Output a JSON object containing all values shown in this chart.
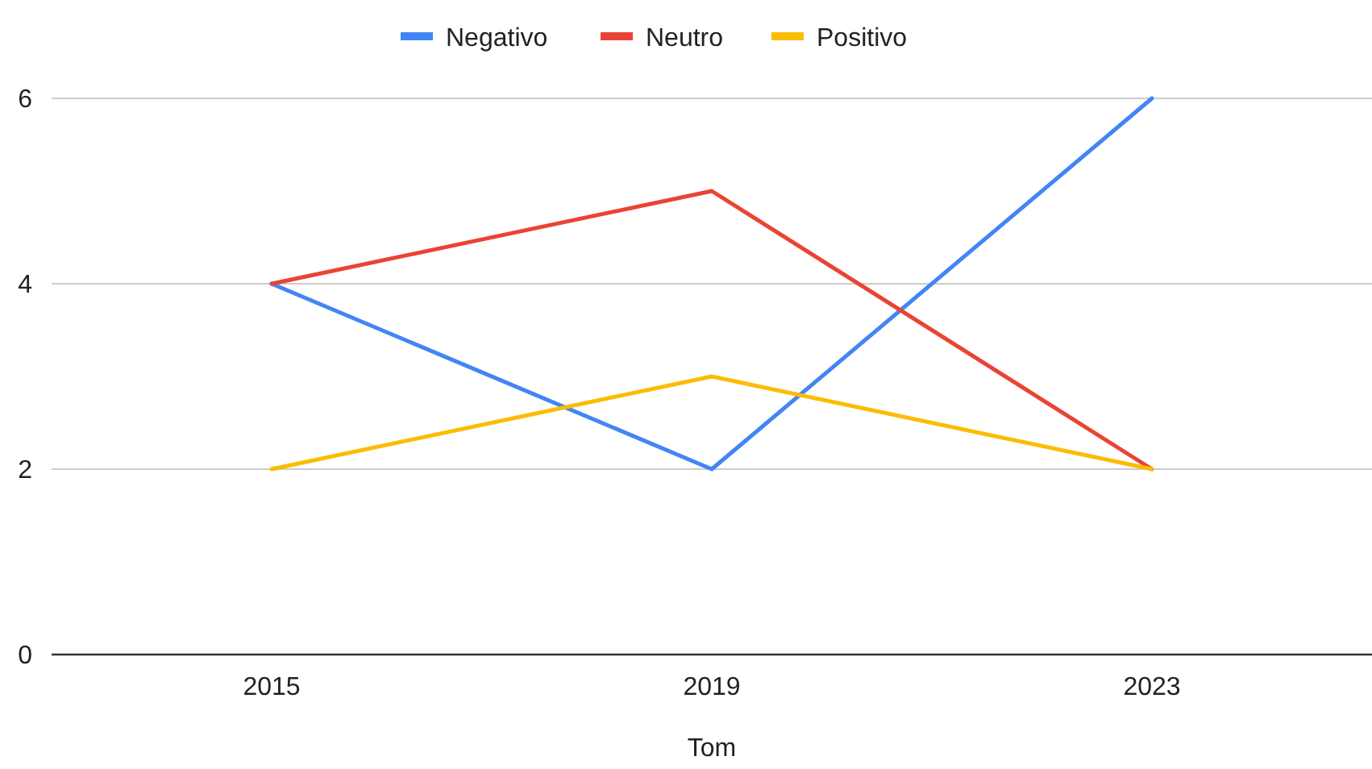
{
  "chart_data": {
    "type": "line",
    "xlabel": "Tom",
    "categories": [
      "2015",
      "2019",
      "2023"
    ],
    "series": [
      {
        "name": "Negativo",
        "color": "#4285f4",
        "values": [
          4,
          2,
          6
        ]
      },
      {
        "name": "Neutro",
        "color": "#ea4335",
        "values": [
          4,
          5,
          2
        ]
      },
      {
        "name": "Positivo",
        "color": "#fbbc04",
        "values": [
          2,
          3,
          2
        ]
      }
    ],
    "ylim": [
      0,
      6
    ],
    "yticks": [
      0,
      2,
      4,
      6
    ],
    "grid": "y",
    "legend": "top",
    "marker": "none",
    "line_style": "solid"
  }
}
